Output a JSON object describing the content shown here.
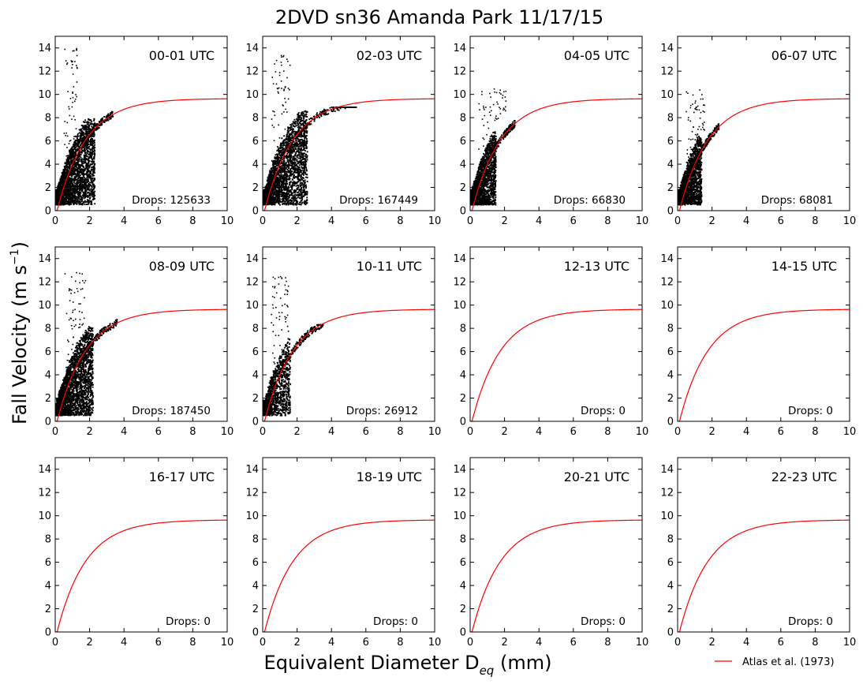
{
  "figure": {
    "title": "2DVD sn36 Amanda Park 11/17/15",
    "xlabel_main": "Equivalent Diameter D",
    "xlabel_sub": "eq",
    "xlabel_unit": " (mm)",
    "ylabel_main": "Fall Velocity (m s",
    "ylabel_sup": "−1",
    "ylabel_end": ")",
    "legend_label": "Atlas et al. (1973)",
    "drops_prefix": "Drops: "
  },
  "chart_data": {
    "type": "scatter",
    "title": "2DVD sn36 Amanda Park 11/17/15",
    "xlabel": "Equivalent Diameter D_eq (mm)",
    "ylabel": "Fall Velocity (m s^-1)",
    "xlim": [
      0,
      10
    ],
    "ylim": [
      0,
      15
    ],
    "x_ticks": [
      0,
      2,
      4,
      6,
      8,
      10
    ],
    "y_ticks": [
      0,
      2,
      4,
      6,
      8,
      10,
      12,
      14
    ],
    "grid": false,
    "legend_position": "bottom-right",
    "reference_curve": {
      "name": "Atlas et al. (1973)",
      "color": "#ff0000",
      "formula": "v = 9.65 - 10.3*exp(-0.6*D)",
      "x": [
        0.07,
        0.5,
        1,
        1.5,
        2,
        2.5,
        3,
        3.5,
        4,
        5,
        6,
        7,
        8,
        9,
        10
      ],
      "y": [
        0,
        2.0,
        4.0,
        5.4,
        6.5,
        7.3,
        8.0,
        8.4,
        8.7,
        9.1,
        9.4,
        9.5,
        9.6,
        9.6,
        9.6
      ]
    },
    "scatter_color": "#000000",
    "panels": [
      {
        "label": "00-01 UTC",
        "drops": 125633,
        "core_xmax": 2.3,
        "core_ymax": 7.9,
        "outlier_ymax": 14.0,
        "outlier_xmax": 1.3,
        "tail_xmax": 3.4,
        "tail_ymax": 9.0
      },
      {
        "label": "02-03 UTC",
        "drops": 167449,
        "core_xmax": 2.6,
        "core_ymax": 8.6,
        "outlier_ymax": 13.5,
        "outlier_xmax": 1.6,
        "tail_xmax": 5.5,
        "tail_ymax": 8.9
      },
      {
        "label": "04-05 UTC",
        "drops": 66830,
        "core_xmax": 1.5,
        "core_ymax": 6.8,
        "outlier_ymax": 10.6,
        "outlier_xmax": 2.1,
        "tail_xmax": 2.6,
        "tail_ymax": 7.8
      },
      {
        "label": "06-07 UTC",
        "drops": 68081,
        "core_xmax": 1.4,
        "core_ymax": 6.5,
        "outlier_ymax": 10.4,
        "outlier_xmax": 1.6,
        "tail_xmax": 2.4,
        "tail_ymax": 7.5
      },
      {
        "label": "08-09 UTC",
        "drops": 187450,
        "core_xmax": 2.2,
        "core_ymax": 8.2,
        "outlier_ymax": 12.9,
        "outlier_xmax": 1.8,
        "tail_xmax": 3.6,
        "tail_ymax": 8.8
      },
      {
        "label": "10-11 UTC",
        "drops": 26912,
        "core_xmax": 1.6,
        "core_ymax": 7.2,
        "outlier_ymax": 12.6,
        "outlier_xmax": 1.5,
        "tail_xmax": 3.5,
        "tail_ymax": 8.3
      },
      {
        "label": "12-13 UTC",
        "drops": 0
      },
      {
        "label": "14-15 UTC",
        "drops": 0
      },
      {
        "label": "16-17 UTC",
        "drops": 0
      },
      {
        "label": "18-19 UTC",
        "drops": 0
      },
      {
        "label": "20-21 UTC",
        "drops": 0
      },
      {
        "label": "22-23 UTC",
        "drops": 0
      }
    ]
  }
}
